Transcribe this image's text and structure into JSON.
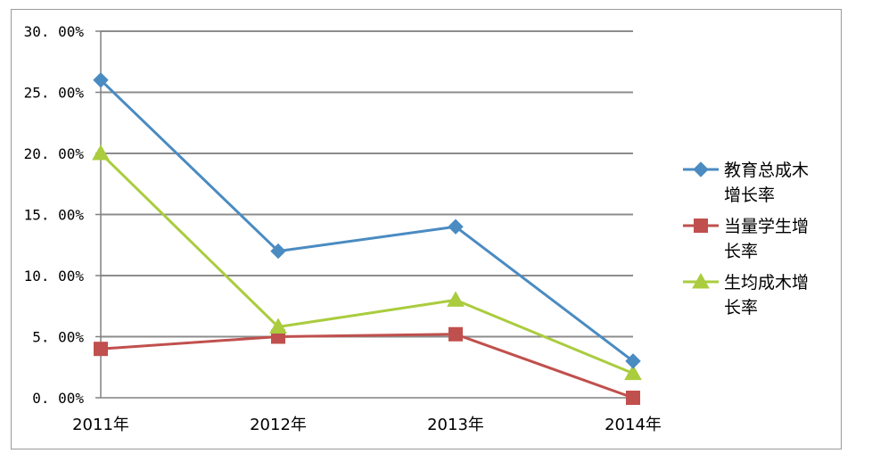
{
  "chart_data": {
    "type": "line",
    "title": "",
    "xlabel": "",
    "ylabel": "",
    "categories": [
      "2011年",
      "2012年",
      "2013年",
      "2014年"
    ],
    "ylim": [
      0,
      30
    ],
    "yticks": [
      0,
      5,
      10,
      15,
      20,
      25,
      30
    ],
    "ytick_labels": [
      "0. 00%",
      "5. 00%",
      "10. 00%",
      "15. 00%",
      "20. 00%",
      "25. 00%",
      "30. 00%"
    ],
    "grid": true,
    "legend_position": "right",
    "series": [
      {
        "name": "教育总成木增长率",
        "legend_lines": [
          "教育总成木",
          "增长率"
        ],
        "marker": "diamond",
        "color": "#4a8bc2",
        "values": [
          26,
          12,
          14,
          3
        ]
      },
      {
        "name": "当量学生增长率",
        "legend_lines": [
          "当量学生增",
          "长率"
        ],
        "marker": "square",
        "color": "#c0504d",
        "values": [
          4,
          5,
          5.2,
          0
        ]
      },
      {
        "name": "生均成木增长率",
        "legend_lines": [
          "生均成木增",
          "长率"
        ],
        "marker": "triangle",
        "color": "#aacc3e",
        "values": [
          20,
          5.8,
          8,
          2
        ]
      }
    ]
  }
}
